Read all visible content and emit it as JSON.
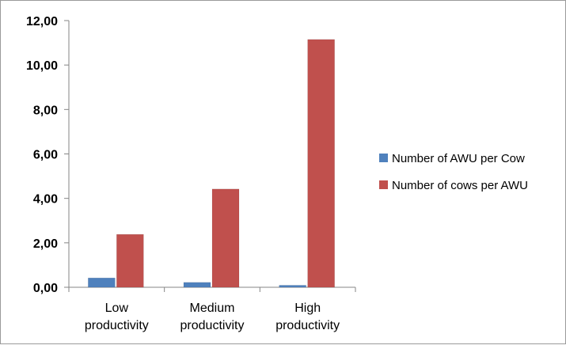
{
  "chart_data": {
    "type": "bar",
    "categories": [
      [
        "Low",
        "productivity"
      ],
      [
        "Medium",
        "productivity"
      ],
      [
        "High",
        "productivity"
      ]
    ],
    "series": [
      {
        "name": "Number of AWU per Cow",
        "color": "#4F81BD",
        "values": [
          0.42,
          0.22,
          0.09
        ]
      },
      {
        "name": "Number of cows per AWU",
        "color": "#C0504D",
        "values": [
          2.38,
          4.42,
          11.15
        ]
      }
    ],
    "y_ticks": [
      "0,00",
      "2,00",
      "4,00",
      "6,00",
      "8,00",
      "10,00",
      "12,00"
    ],
    "ylim": [
      0,
      12
    ],
    "grid": false,
    "legend_position": "right"
  }
}
